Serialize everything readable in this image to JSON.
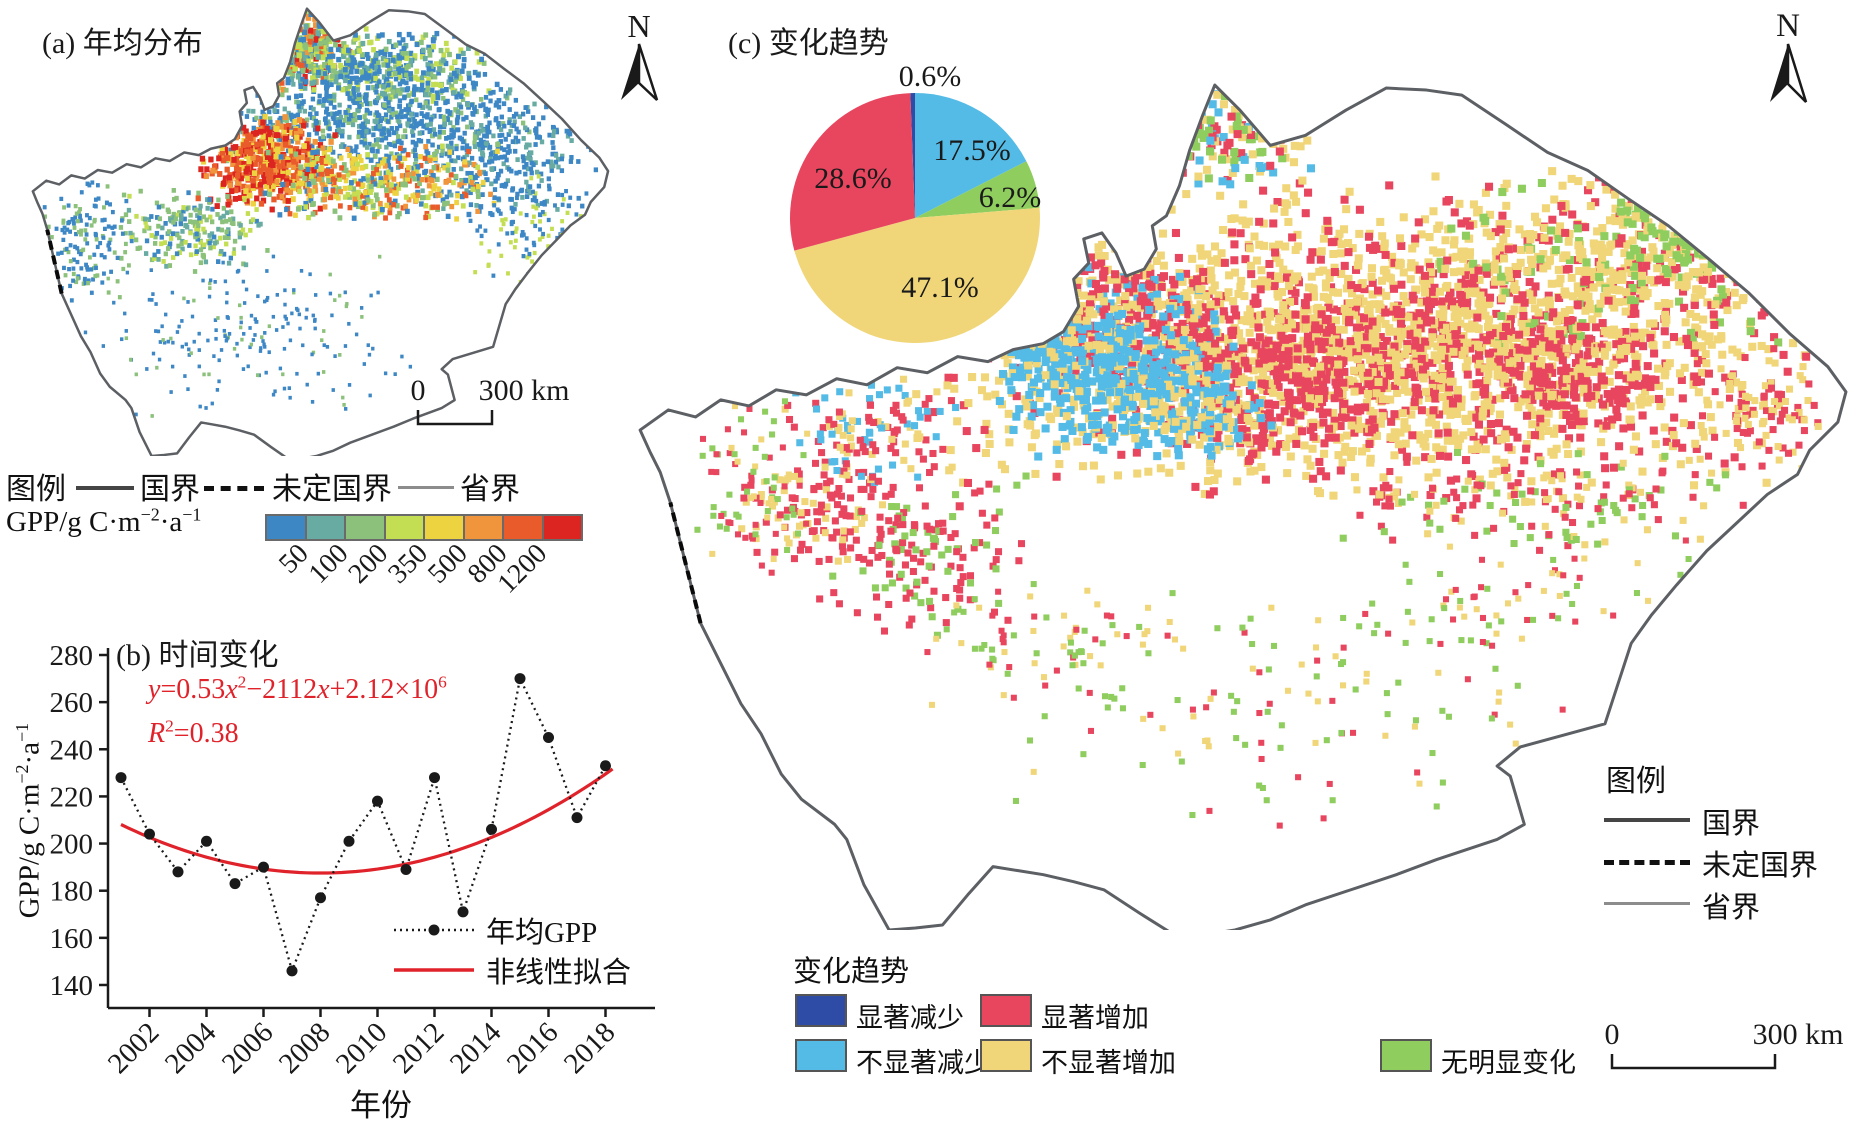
{
  "colors": {
    "gpp_ramp": [
      "#3d87c5",
      "#68aba3",
      "#8cc17b",
      "#c3de52",
      "#ecd33f",
      "#f0953c",
      "#e95b2b",
      "#dc2420"
    ],
    "trend": {
      "sig_dec": "#2e4ba5",
      "sig_inc": "#e8465f",
      "insig_dec": "#54bbe6",
      "insig_inc": "#f0d678",
      "no_change": "#8ecd5e"
    },
    "fit_line": "#e0232b",
    "equation_text": "#e0232b",
    "series_line": "#1a1a1a",
    "border_national": "#454545",
    "border_province": "#8c8c8c",
    "map_outline": "#5c5f63"
  },
  "panel_a": {
    "title": "(a) 年均分布",
    "north": "N",
    "scalebar": {
      "start": "0",
      "end": "300 km"
    },
    "legend": {
      "header": "图例",
      "items": [
        {
          "label": "国界",
          "style": "national"
        },
        {
          "label": "未定国界",
          "style": "undefined"
        },
        {
          "label": "省界",
          "style": "province"
        }
      ]
    },
    "colorbar": {
      "label_segments": [
        {
          "t": "GPP/g C·m"
        },
        {
          "t": "−2",
          "sup": true
        },
        {
          "t": "·a"
        },
        {
          "t": "−1",
          "sup": true
        }
      ],
      "label_plain": "GPP/g C·m−2·a−1",
      "ticks": [
        "50",
        "100",
        "200",
        "350",
        "500",
        "800",
        "1200"
      ],
      "colors": [
        "#3d87c5",
        "#68aba3",
        "#8cc17b",
        "#c3de52",
        "#ecd33f",
        "#f0953c",
        "#e95b2b",
        "#dc2420"
      ]
    }
  },
  "panel_b": {
    "title": "(b) 时间变化",
    "equation_segments": [
      {
        "t": "y",
        "i": true
      },
      {
        "t": "=0.53"
      },
      {
        "t": "x",
        "i": true
      },
      {
        "t": "2",
        "sup": true
      },
      {
        "t": "−2112"
      },
      {
        "t": "x",
        "i": true
      },
      {
        "t": "+2.12×10"
      },
      {
        "t": "6",
        "sup": true
      }
    ],
    "r2_segments": [
      {
        "t": "R",
        "i": true
      },
      {
        "t": "2",
        "sup": true
      },
      {
        "t": "=0.38"
      }
    ],
    "ylabel_segments": [
      {
        "t": "GPP/g C·m"
      },
      {
        "t": "−2",
        "sup": true
      },
      {
        "t": "·a"
      },
      {
        "t": "−1",
        "sup": true
      }
    ],
    "xlabel": "年份",
    "legend": [
      {
        "label": "年均GPP",
        "type": "dotted-marker"
      },
      {
        "label": "非线性拟合",
        "type": "red-line"
      }
    ]
  },
  "panel_c": {
    "title": "(c) 变化趋势",
    "north": "N",
    "trend_legend": {
      "header": "变化趋势",
      "items": [
        {
          "label": "显著减少",
          "key": "sig_dec"
        },
        {
          "label": "显著增加",
          "key": "sig_inc"
        },
        {
          "label": "不显著减少",
          "key": "insig_dec"
        },
        {
          "label": "不显著增加",
          "key": "insig_inc"
        },
        {
          "label": "无明显变化",
          "key": "no_change"
        }
      ]
    },
    "map_legend": {
      "header": "图例",
      "items": [
        {
          "label": "国界",
          "style": "national"
        },
        {
          "label": "未定国界",
          "style": "undefined"
        },
        {
          "label": "省界",
          "style": "province"
        }
      ]
    },
    "scalebar": {
      "start": "0",
      "end": "300 km"
    }
  },
  "chart_data": [
    {
      "type": "line",
      "title": "(b) 时间变化",
      "x": [
        2001,
        2002,
        2003,
        2004,
        2005,
        2006,
        2007,
        2008,
        2009,
        2010,
        2011,
        2012,
        2013,
        2014,
        2015,
        2016,
        2017,
        2018
      ],
      "series": [
        {
          "name": "年均GPP",
          "style": "black-dotted-with-markers",
          "values": [
            228,
            204,
            188,
            201,
            183,
            190,
            146,
            177,
            201,
            218,
            189,
            228,
            171,
            206,
            270,
            245,
            211,
            233
          ]
        },
        {
          "name": "非线性拟合",
          "style": "red-solid-quadratic-fit",
          "equation": "y=0.53x²−2112x+2.12×10⁶",
          "r_squared": 0.38
        }
      ],
      "xlabel": "年份",
      "ylabel": "GPP/g C·m−2·a−1",
      "ylim": [
        130,
        285
      ],
      "yticks": [
        140,
        160,
        180,
        200,
        220,
        240,
        260,
        280
      ],
      "xticks": [
        2002,
        2004,
        2006,
        2008,
        2010,
        2012,
        2014,
        2016,
        2018
      ],
      "grid": false,
      "legend_position": "lower right"
    },
    {
      "type": "pie",
      "title": "(c) 变化趋势",
      "categories": [
        "显著减少",
        "不显著减少",
        "无明显变化",
        "不显著增加",
        "显著增加"
      ],
      "values": [
        0.6,
        17.5,
        6.2,
        47.1,
        28.6
      ],
      "labels": [
        "0.6%",
        "17.5%",
        "6.2%",
        "47.1%",
        "28.6%"
      ],
      "colors": [
        "#2e4ba5",
        "#54bbe6",
        "#8ecd5e",
        "#f0d678",
        "#e8465f"
      ],
      "start": "top",
      "direction": "clockwise"
    }
  ]
}
